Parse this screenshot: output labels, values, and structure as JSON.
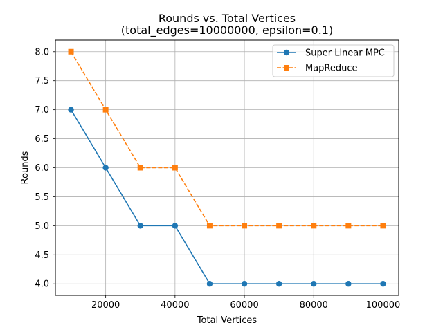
{
  "chart_data": {
    "type": "line",
    "title": "Rounds vs. Total Vertices",
    "subtitle": "(total_edges=10000000, epsilon=0.1)",
    "xlabel": "Total Vertices",
    "ylabel": "Rounds",
    "x": [
      10000,
      20000,
      30000,
      40000,
      50000,
      60000,
      70000,
      80000,
      90000,
      100000
    ],
    "xlim": [
      5500,
      104500
    ],
    "ylim": [
      3.8,
      8.2
    ],
    "xticks": [
      20000,
      40000,
      60000,
      80000,
      100000
    ],
    "xtick_labels": [
      "20000",
      "40000",
      "60000",
      "80000",
      "100000"
    ],
    "yticks": [
      4.0,
      4.5,
      5.0,
      5.5,
      6.0,
      6.5,
      7.0,
      7.5,
      8.0
    ],
    "ytick_labels": [
      "4.0",
      "4.5",
      "5.0",
      "5.5",
      "6.0",
      "6.5",
      "7.0",
      "7.5",
      "8.0"
    ],
    "grid": true,
    "legend_position": "top-right",
    "series": [
      {
        "name": "Super Linear MPC",
        "values": [
          7,
          6,
          5,
          5,
          4,
          4,
          4,
          4,
          4,
          4
        ],
        "color": "#1f77b4",
        "marker": "circle",
        "linestyle": "solid"
      },
      {
        "name": "MapReduce",
        "values": [
          8,
          7,
          6,
          6,
          5,
          5,
          5,
          5,
          5,
          5
        ],
        "color": "#ff7f0e",
        "marker": "square",
        "linestyle": "dashed"
      }
    ]
  }
}
